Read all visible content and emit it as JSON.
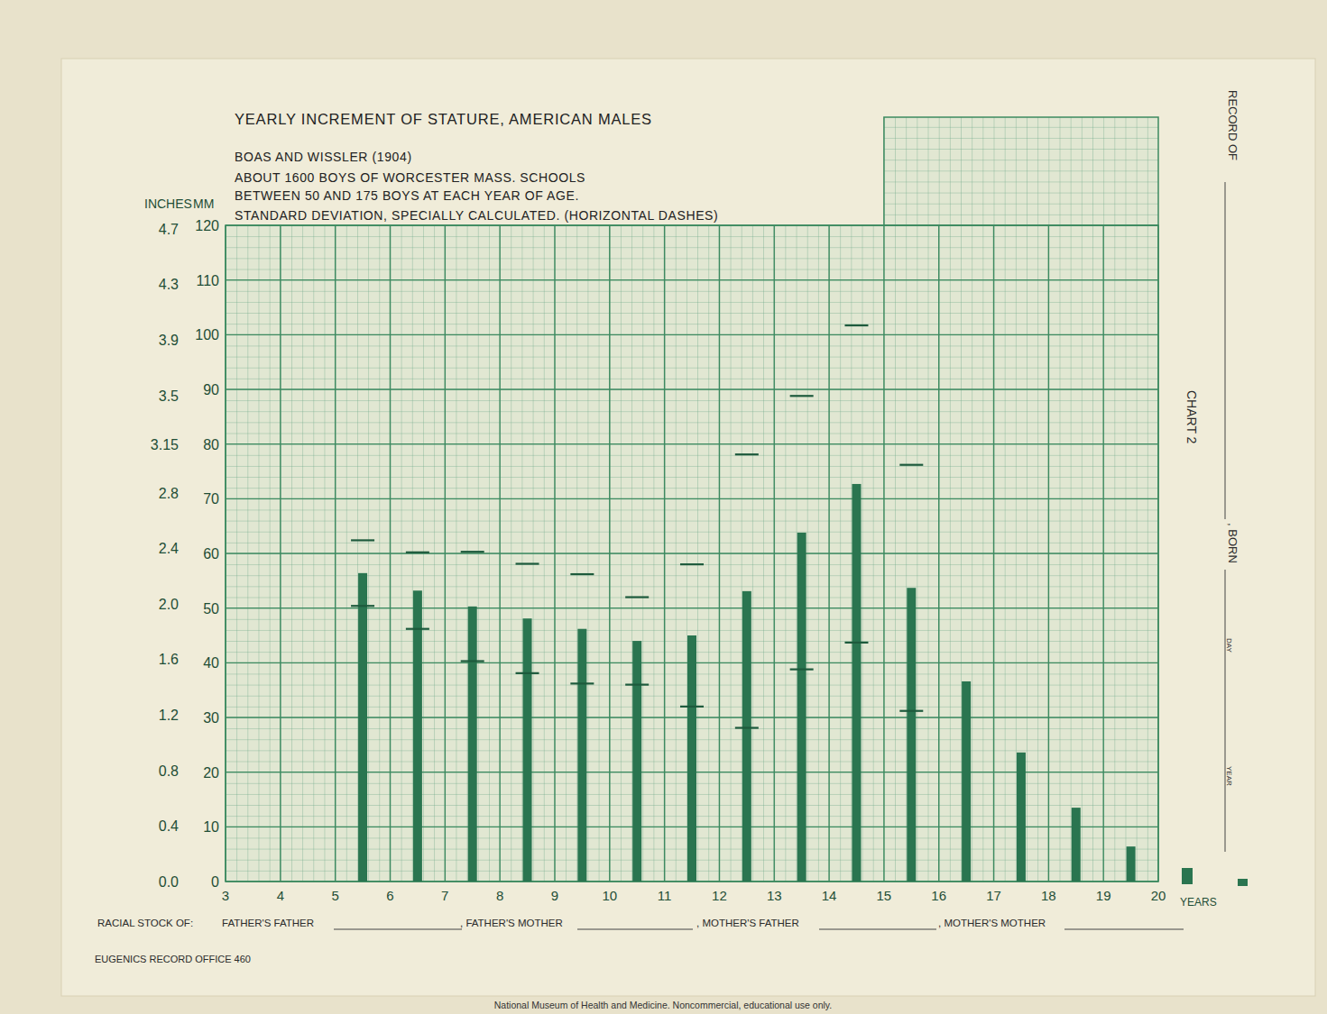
{
  "chart_data": {
    "type": "bar",
    "title": "YEARLY INCREMENT OF STATURE, AMERICAN MALES",
    "subtitle": [
      "BOAS AND WISSLER (1904)",
      "ABOUT 1600 BOYS OF WORCESTER MASS. SCHOOLS",
      "BETWEEN 50 AND 175 BOYS AT EACH YEAR OF AGE.",
      "STANDARD DEVIATION, SPECIALLY CALCULATED. (HORIZONTAL DASHES)"
    ],
    "x_label": "YEARS",
    "y_label": "MM",
    "y2_label": "INCHES",
    "x": [
      5.5,
      6.5,
      7.5,
      8.5,
      9.5,
      10.5,
      11.5,
      12.5,
      13.5,
      14.5,
      15.5,
      16.5,
      17.5,
      18.5,
      19.5
    ],
    "values": [
      56.4,
      53.2,
      50.3,
      48.1,
      46.2,
      44.0,
      45.0,
      53.1,
      63.8,
      72.7,
      53.7,
      36.6,
      23.6,
      13.5,
      6.4
    ],
    "sd": [
      6,
      7,
      10,
      10,
      10,
      8,
      13,
      25,
      25,
      29,
      22.5,
      null,
      null,
      null,
      null
    ],
    "color": "#2a7550",
    "xlim": [
      3,
      20
    ],
    "xticks": [
      3,
      4,
      5,
      6,
      7,
      8,
      9,
      10,
      11,
      12,
      13,
      14,
      15,
      16,
      17,
      18,
      19,
      20
    ],
    "ylim": [
      0,
      120
    ],
    "yticks": [
      0,
      10,
      20,
      30,
      40,
      50,
      60,
      70,
      80,
      90,
      100,
      110,
      120
    ],
    "y2lim": [
      0,
      4.724
    ],
    "y2ticks": [
      {
        "value": 0,
        "label": "0.0"
      },
      0.4,
      0.8,
      1.2,
      1.6,
      {
        "value": 2,
        "label": "2.0"
      },
      2.4,
      2.8,
      3.15,
      3.5,
      3.9,
      4.3,
      4.7
    ],
    "grid": true,
    "annotations": [
      "RECORD OF",
      ", BORN",
      "DAY",
      "YEAR",
      "CHART 2",
      "RACIAL STOCK OF:",
      "FATHER'S FATHER",
      ", FATHER'S MOTHER",
      ", MOTHER'S FATHER",
      ", MOTHER'S MOTHER",
      "EUGENICS RECORD OFFICE 460",
      "National Museum of Health and Medicine. Noncommercial, educational use only."
    ]
  }
}
